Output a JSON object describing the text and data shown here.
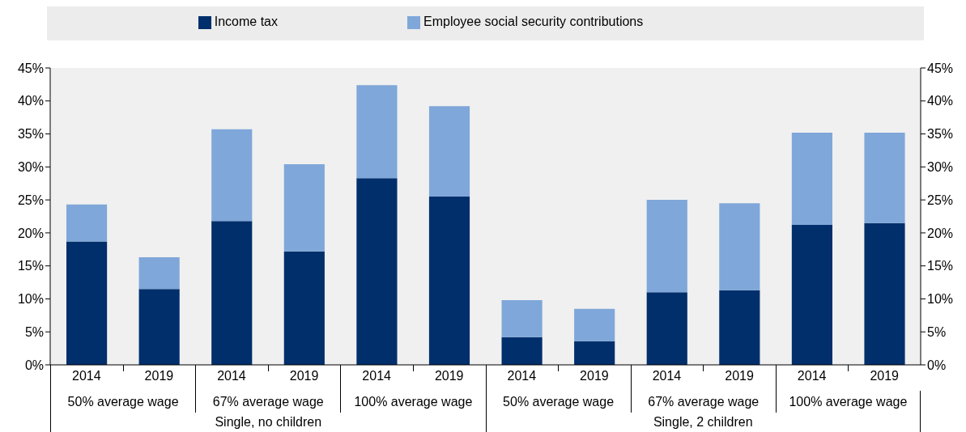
{
  "chart_data": {
    "type": "bar",
    "stacked": true,
    "categories": [
      "2014",
      "2019",
      "2014",
      "2019",
      "2014",
      "2019",
      "2014",
      "2019",
      "2014",
      "2019",
      "2014",
      "2019"
    ],
    "series": [
      {
        "name": "Income tax",
        "color": "#002f6c",
        "values": [
          18.7,
          11.5,
          21.8,
          17.2,
          28.3,
          25.5,
          4.2,
          3.6,
          11.0,
          11.3,
          21.2,
          21.5
        ]
      },
      {
        "name": "Employee social security contributions",
        "color": "#7fa7d9",
        "values": [
          5.6,
          4.8,
          13.9,
          13.2,
          14.1,
          13.7,
          5.6,
          4.9,
          14.0,
          13.2,
          14.0,
          13.7
        ]
      }
    ],
    "annotations": [
      "50% average wage",
      "67% average wage",
      "100% average wage",
      "50% average wage",
      "67% average wage",
      "100% average wage",
      "Single, no children",
      "Single, 2 children"
    ],
    "ylim": [
      0,
      45
    ],
    "yticks": [
      {
        "value": 0,
        "label": "0%"
      },
      {
        "value": 5,
        "label": "5%"
      },
      {
        "value": 10,
        "label": "10%"
      },
      {
        "value": 15,
        "label": "15%"
      },
      {
        "value": 20,
        "label": "20%"
      },
      {
        "value": 25,
        "label": "25%"
      },
      {
        "value": 30,
        "label": "30%"
      },
      {
        "value": 35,
        "label": "35%"
      },
      {
        "value": 40,
        "label": "40%"
      },
      {
        "value": 45,
        "label": "45%"
      }
    ],
    "y2lim": [
      0,
      45
    ],
    "y2ticks": [
      {
        "value": 0,
        "label": "0%"
      },
      {
        "value": 5,
        "label": "5%"
      },
      {
        "value": 10,
        "label": "10%"
      },
      {
        "value": 15,
        "label": "15%"
      },
      {
        "value": 20,
        "label": "20%"
      },
      {
        "value": 25,
        "label": "25%"
      },
      {
        "value": 30,
        "label": "30%"
      },
      {
        "value": 35,
        "label": "35%"
      },
      {
        "value": 40,
        "label": "40%"
      },
      {
        "value": 45,
        "label": "45%"
      }
    ],
    "legend": "top"
  }
}
